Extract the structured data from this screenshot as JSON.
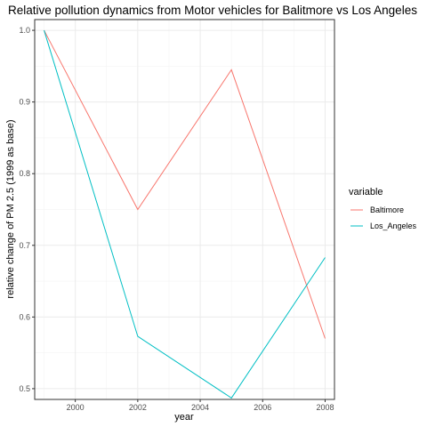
{
  "chart_data": {
    "type": "line",
    "title": "Relative pollution dynamics from Motor vehicles for Balitmore vs Los Angeles",
    "xlabel": "year",
    "ylabel": "relative change of PM 2.5 (1999 as base)",
    "x": [
      1999,
      2002,
      2005,
      2008
    ],
    "xlim": [
      1998.7,
      2008.3
    ],
    "ylim": [
      0.485,
      1.015
    ],
    "x_ticks": [
      2000,
      2002,
      2004,
      2006,
      2008
    ],
    "y_ticks": [
      0.5,
      0.6,
      0.7,
      0.8,
      0.9,
      1.0
    ],
    "x_tick_labels": [
      "2000",
      "2002",
      "2004",
      "2006",
      "2008"
    ],
    "y_tick_labels": [
      "0.5",
      "0.6",
      "0.7",
      "0.8",
      "0.9",
      "1.0"
    ],
    "grid": true,
    "legend": {
      "title": "variable",
      "position": "right"
    },
    "series": [
      {
        "name": "Baltimore",
        "color": "#F8766D",
        "values": [
          1.0,
          0.75,
          0.945,
          0.57
        ]
      },
      {
        "name": "Los_Angeles",
        "color": "#00BFC4",
        "values": [
          1.0,
          0.573,
          0.487,
          0.683
        ]
      }
    ]
  }
}
